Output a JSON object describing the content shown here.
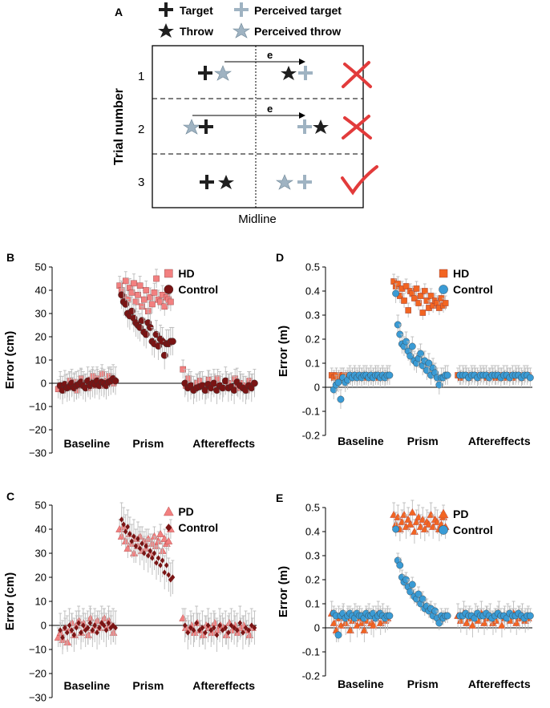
{
  "panelA": {
    "label": "A",
    "legend": [
      "Target",
      "Perceived target",
      "Throw",
      "Perceived throw"
    ],
    "y_axis_title": "Trial number",
    "trial_numbers": [
      "1",
      "2",
      "3"
    ],
    "error_label": "e",
    "x_axis_title": "Midline",
    "outcomes": [
      "incorrect",
      "incorrect",
      "correct"
    ],
    "colors": {
      "target": "#1f1f1f",
      "perceived": "#9fb3c2",
      "wrong": "#e23b3b"
    }
  },
  "chart_data": [
    {
      "id": "B",
      "panel_label": "B",
      "type": "scatter",
      "ylabel": "Error (cm)",
      "ylim": [
        -30,
        50
      ],
      "yticks": [
        -30,
        -20,
        -10,
        0,
        10,
        20,
        30,
        40,
        50
      ],
      "phase_labels": [
        "Baseline",
        "Prism",
        "Aftereffects"
      ],
      "series": [
        {
          "name": "HD",
          "marker": "square",
          "color": "#f28080",
          "base": [
            -2.5,
            -1,
            -3,
            -0.5,
            -2,
            1,
            -1.5,
            0.5,
            -3,
            -1,
            2,
            -0.5,
            0,
            -2,
            1.5,
            3,
            -1,
            2,
            0,
            4,
            -1,
            1,
            3,
            2,
            0
          ],
          "prism": [
            42,
            40,
            37,
            44,
            36,
            41,
            39,
            43,
            35,
            38,
            42,
            33,
            36,
            40,
            31,
            37,
            34,
            39,
            45,
            36,
            35,
            38,
            33,
            37,
            36,
            35
          ],
          "after": [
            6,
            -1,
            2,
            -1,
            -2.5,
            0,
            1,
            -1,
            -3,
            1.5,
            -1,
            0,
            2,
            -1,
            -2,
            1,
            0,
            -1.5,
            2,
            -2,
            0,
            -1,
            -3,
            1,
            0
          ],
          "err": 4
        },
        {
          "name": "Control",
          "marker": "circle",
          "color": "#7a1414",
          "base": [
            -1,
            -3,
            -0.5,
            -2,
            -1.5,
            0,
            -2,
            -1,
            -0.5,
            0.5,
            -1,
            -2,
            1,
            -1,
            0,
            -0.5,
            1,
            -1,
            0.5,
            0,
            -1,
            0.5,
            1,
            2,
            1
          ],
          "prism": [
            38,
            35,
            34,
            30,
            29,
            31,
            28,
            26,
            25,
            24,
            27,
            22,
            21,
            26,
            24,
            18,
            17,
            21,
            16,
            19,
            18,
            12,
            17,
            17,
            18,
            18
          ],
          "after": [
            0,
            -2,
            -1,
            -3,
            -2,
            -1.5,
            -1,
            -3,
            -0.5,
            -2,
            0,
            -3,
            -1,
            -2,
            1,
            -2,
            -1.5,
            -3,
            0.5,
            -1,
            -2,
            -3,
            -1,
            -2,
            0
          ],
          "err": 6
        }
      ],
      "legend": [
        "HD",
        "Control"
      ]
    },
    {
      "id": "D",
      "panel_label": "D",
      "type": "scatter",
      "ylabel": "Error (m)",
      "ylim": [
        -0.2,
        0.5
      ],
      "yticks": [
        -0.2,
        -0.1,
        0,
        0.1,
        0.2,
        0.3,
        0.4,
        0.5
      ],
      "phase_labels": [
        "Baseline",
        "Prism",
        "Aftereffects"
      ],
      "series": [
        {
          "name": "HD",
          "marker": "square",
          "color": "#f26522",
          "base": [
            0.05,
            0.04,
            0.05,
            0.04,
            0.05,
            0.05,
            0.04,
            0.05,
            0.04,
            0.05,
            0.05,
            0.04,
            0.05,
            0.05,
            0.04,
            0.05,
            0.05,
            0.04,
            0.05,
            0.05,
            0.04,
            0.05,
            0.05,
            0.04,
            0.05
          ],
          "prism": [
            0.44,
            0.42,
            0.43,
            0.38,
            0.41,
            0.36,
            0.42,
            0.32,
            0.4,
            0.39,
            0.37,
            0.41,
            0.35,
            0.38,
            0.31,
            0.4,
            0.36,
            0.33,
            0.38,
            0.34,
            0.36,
            0.35,
            0.33,
            0.37,
            0.34,
            0.35
          ],
          "after": [
            0.05,
            0.04,
            0.05,
            0.05,
            0.04,
            0.05,
            0.05,
            0.04,
            0.05,
            0.05,
            0.04,
            0.05,
            0.05,
            0.04,
            0.05,
            0.05,
            0.04,
            0.05,
            0.05,
            0.04,
            0.05,
            0.05,
            0.04,
            0.05,
            0.05
          ],
          "err": 0.03
        },
        {
          "name": "Control",
          "marker": "circle",
          "color": "#3a9bd5",
          "base": [
            -0.01,
            0.01,
            0.02,
            -0.05,
            0.04,
            0.02,
            0.03,
            0.05,
            0.04,
            0.05,
            0.04,
            0.05,
            0.04,
            0.05,
            0.05,
            0.04,
            0.05,
            0.04,
            0.05,
            0.05,
            0.04,
            0.05,
            0.04,
            0.05,
            0.05
          ],
          "prism": [
            0.39,
            0.26,
            0.22,
            0.18,
            0.17,
            0.19,
            0.15,
            0.13,
            0.17,
            0.11,
            0.1,
            0.12,
            0.14,
            0.09,
            0.11,
            0.07,
            0.1,
            0.05,
            0.08,
            0.06,
            0.04,
            0.01,
            0.04,
            0.04,
            0.05,
            0.05
          ],
          "after": [
            0.05,
            0.05,
            0.05,
            0.04,
            0.05,
            0.05,
            0.04,
            0.05,
            0.05,
            0.05,
            0.04,
            0.05,
            0.05,
            0.05,
            0.04,
            0.05,
            0.05,
            0.04,
            0.05,
            0.05,
            0.05,
            0.04,
            0.05,
            0.05,
            0.04
          ],
          "err": 0.04
        }
      ],
      "legend": [
        "HD",
        "Control"
      ]
    },
    {
      "id": "C",
      "panel_label": "C",
      "type": "scatter",
      "ylabel": "Error (cm)",
      "ylim": [
        -30,
        50
      ],
      "yticks": [
        -30,
        -20,
        -10,
        0,
        10,
        20,
        30,
        40,
        50
      ],
      "phase_labels": [
        "Baseline",
        "Prism",
        "Aftereffects"
      ],
      "series": [
        {
          "name": "PD",
          "marker": "triangle",
          "color": "#f28080",
          "base": [
            -5,
            -3,
            -6,
            -1,
            -7,
            -2,
            1,
            -4,
            0,
            2,
            -3,
            1,
            -1,
            -4,
            3,
            -2,
            0,
            2,
            -1,
            1,
            3,
            -1,
            2,
            0,
            -3
          ],
          "prism": [
            40,
            37,
            41,
            35,
            32,
            38,
            34,
            30,
            36,
            33,
            37,
            31,
            35,
            32,
            36,
            30,
            34,
            37,
            33,
            35,
            38,
            31,
            36,
            34,
            35,
            40
          ],
          "after": [
            3,
            -1,
            -2,
            0,
            -3,
            1,
            -2,
            -4,
            0,
            -1,
            -3,
            1,
            -2,
            0,
            -1,
            -4,
            1,
            -2,
            0,
            -3,
            -1,
            0,
            -2,
            -4,
            -1
          ],
          "err": 4
        },
        {
          "name": "Control",
          "marker": "diamond",
          "color": "#7a1414",
          "base": [
            -2,
            -5,
            -1,
            -3,
            0,
            -2,
            -4,
            -1,
            1,
            -3,
            0,
            -2,
            -1,
            1,
            -2,
            0,
            -3,
            -1,
            1,
            0,
            -2,
            1,
            -1,
            0,
            -1
          ],
          "prism": [
            44,
            42,
            39,
            41,
            38,
            35,
            37,
            33,
            36,
            32,
            34,
            30,
            33,
            29,
            31,
            28,
            30,
            26,
            28,
            25,
            27,
            22,
            25,
            21,
            19,
            20
          ],
          "after": [
            0,
            -3,
            -1,
            -2,
            1,
            -2,
            -1,
            -3,
            0,
            -2,
            -1,
            -4,
            0,
            -2,
            -1,
            -3,
            0,
            -1,
            -2,
            1,
            -3,
            -1,
            -2,
            0,
            -1
          ],
          "err": 7
        }
      ],
      "legend": [
        "PD",
        "Control"
      ]
    },
    {
      "id": "E",
      "panel_label": "E",
      "type": "scatter",
      "ylabel": "Error (m)",
      "ylim": [
        -0.2,
        0.5
      ],
      "yticks": [
        -0.2,
        -0.1,
        0,
        0.1,
        0.2,
        0.3,
        0.4,
        0.5
      ],
      "phase_labels": [
        "Baseline",
        "Prism",
        "Aftereffects"
      ],
      "series": [
        {
          "name": "PD",
          "marker": "triangle",
          "color": "#f26522",
          "base": [
            0.06,
            0.02,
            -0.01,
            0.04,
            0.01,
            0.05,
            0.02,
            0.04,
            -0.01,
            0.03,
            0.05,
            0.01,
            0.04,
            0.02,
            -0.01,
            0.03,
            0.05,
            0.02,
            0.01,
            0.04,
            0.06,
            0.02,
            0.05,
            0.03,
            0.04
          ],
          "prism": [
            0.47,
            0.43,
            0.46,
            0.41,
            0.44,
            0.47,
            0.42,
            0.45,
            0.43,
            0.48,
            0.4,
            0.44,
            0.46,
            0.42,
            0.45,
            0.41,
            0.44,
            0.43,
            0.47,
            0.42,
            0.45,
            0.44,
            0.41,
            0.43,
            0.46,
            0.42
          ],
          "after": [
            0.05,
            0.03,
            0.06,
            0.02,
            0.04,
            0.01,
            0.05,
            0.03,
            0.06,
            0.02,
            0.04,
            0.05,
            0.02,
            0.03,
            0.06,
            0.01,
            0.04,
            0.05,
            0.03,
            0.06,
            0.02,
            0.04,
            0.05,
            0.03,
            0.04
          ],
          "err": 0.05
        },
        {
          "name": "Control",
          "marker": "circle",
          "color": "#3a9bd5",
          "base": [
            0.06,
            0.05,
            -0.03,
            0.05,
            0.06,
            0.04,
            0.05,
            0.06,
            0.05,
            0.04,
            0.06,
            0.05,
            0.05,
            0.04,
            0.06,
            0.05,
            0.05,
            0.06,
            0.04,
            0.05,
            0.06,
            0.05,
            0.04,
            0.05,
            0.05
          ],
          "prism": [
            0.41,
            0.28,
            0.26,
            0.21,
            0.19,
            0.2,
            0.17,
            0.15,
            0.18,
            0.13,
            0.12,
            0.14,
            0.1,
            0.12,
            0.08,
            0.09,
            0.07,
            0.08,
            0.05,
            0.07,
            0.04,
            0.02,
            0.05,
            0.04,
            0.05,
            0.05
          ],
          "after": [
            0.05,
            0.05,
            0.06,
            0.05,
            0.05,
            0.04,
            0.06,
            0.05,
            0.05,
            0.06,
            0.05,
            0.04,
            0.05,
            0.06,
            0.05,
            0.05,
            0.04,
            0.06,
            0.05,
            0.05,
            0.06,
            0.05,
            0.04,
            0.05,
            0.05
          ],
          "err": 0.03
        }
      ],
      "legend": [
        "PD",
        "Control"
      ]
    }
  ]
}
